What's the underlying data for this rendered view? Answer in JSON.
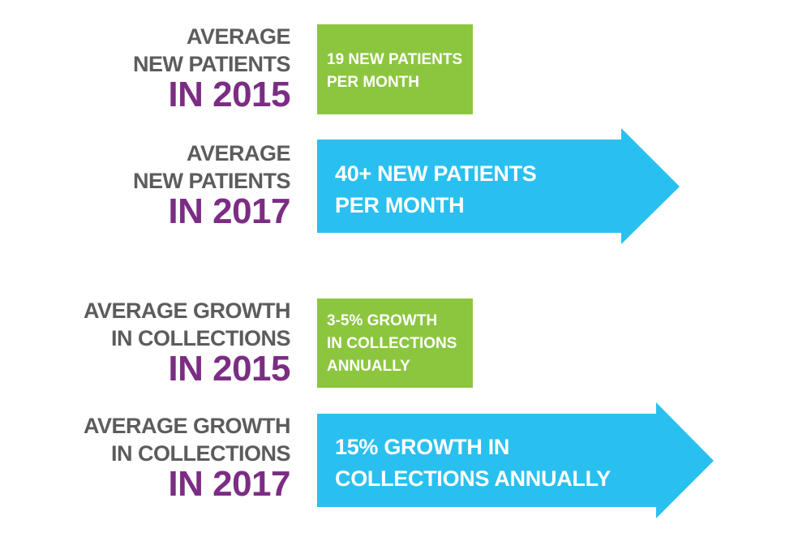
{
  "colors": {
    "gray_text": "#5c5c5c",
    "purple_text": "#7b2d83",
    "green": "#8cc63f",
    "blue": "#29c0ef",
    "white": "#ffffff"
  },
  "rows": [
    {
      "label_lines": [
        "AVERAGE",
        "NEW PATIENTS"
      ],
      "year": "IN 2015",
      "value_lines": [
        "19 NEW PATIENTS",
        "PER MONTH"
      ],
      "shape": "green-box"
    },
    {
      "label_lines": [
        "AVERAGE",
        "NEW PATIENTS"
      ],
      "year": "IN 2017",
      "value_lines": [
        "40+ NEW PATIENTS",
        "PER MONTH"
      ],
      "shape": "blue-arrow"
    },
    {
      "label_lines": [
        "AVERAGE GROWTH",
        "IN COLLECTIONS"
      ],
      "year": "IN 2015",
      "value_lines": [
        "3-5% GROWTH",
        "IN COLLECTIONS",
        "ANNUALLY"
      ],
      "shape": "green-box"
    },
    {
      "label_lines": [
        "AVERAGE GROWTH",
        "IN COLLECTIONS"
      ],
      "year": "IN 2017",
      "value_lines": [
        "15% GROWTH IN",
        "COLLECTIONS ANNUALLY"
      ],
      "shape": "blue-arrow"
    }
  ]
}
